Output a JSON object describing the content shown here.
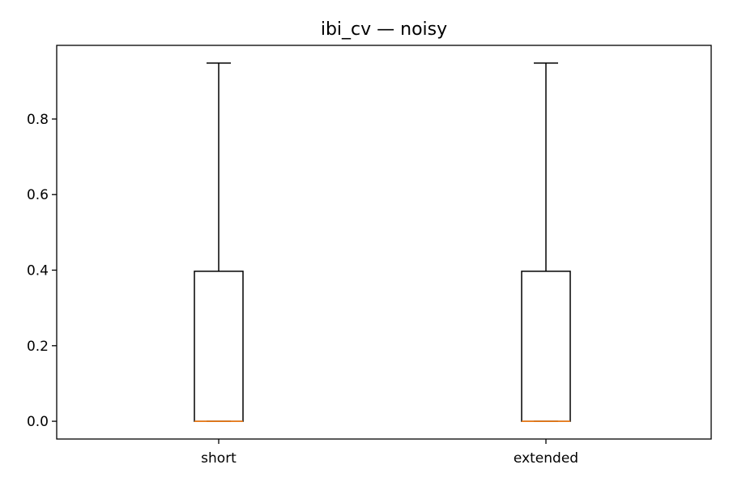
{
  "chart_data": {
    "type": "box",
    "title": "ibi_cv — noisy",
    "xlabel": "",
    "ylabel": "",
    "categories": [
      "short",
      "extended"
    ],
    "boxes": [
      {
        "category": "short",
        "whisker_low": 0.0,
        "q1": 0.0,
        "median": 0.0,
        "q3": 0.397,
        "whisker_high": 0.948
      },
      {
        "category": "extended",
        "whisker_low": 0.0,
        "q1": 0.0,
        "median": 0.0,
        "q3": 0.397,
        "whisker_high": 0.948
      }
    ],
    "ylim": [
      -0.047,
      0.995
    ],
    "yticks": [
      0.0,
      0.2,
      0.4,
      0.6,
      0.8
    ],
    "ytick_labels": [
      "0.0",
      "0.2",
      "0.4",
      "0.6",
      "0.8"
    ],
    "grid": false,
    "colors": {
      "box": "#000000",
      "median": "#ff7f0e"
    }
  }
}
